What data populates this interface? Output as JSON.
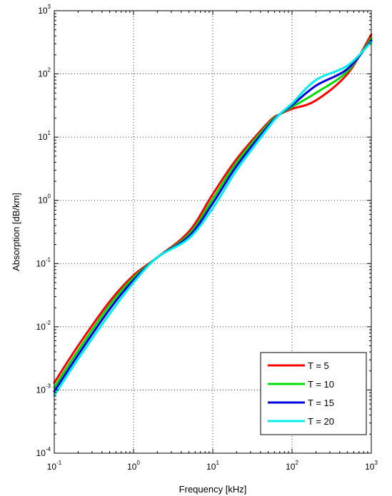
{
  "chart_data": {
    "type": "line",
    "title": "",
    "xlabel": "Frequency [kHz]",
    "ylabel": "Absorption [dB/km]",
    "xscale": "log",
    "yscale": "log",
    "xlim": [
      0.1,
      1000
    ],
    "ylim": [
      0.0001,
      1000
    ],
    "grid": true,
    "legend_position": "bottom-right",
    "x_ticks": [
      {
        "base": "10",
        "exp": "-1"
      },
      {
        "base": "10",
        "exp": "0"
      },
      {
        "base": "10",
        "exp": "1"
      },
      {
        "base": "10",
        "exp": "2"
      },
      {
        "base": "10",
        "exp": "3"
      }
    ],
    "y_ticks": [
      {
        "base": "10",
        "exp": "-4"
      },
      {
        "base": "10",
        "exp": "-3"
      },
      {
        "base": "10",
        "exp": "-2"
      },
      {
        "base": "10",
        "exp": "-1"
      },
      {
        "base": "10",
        "exp": "0"
      },
      {
        "base": "10",
        "exp": "1"
      },
      {
        "base": "10",
        "exp": "2"
      },
      {
        "base": "10",
        "exp": "3"
      }
    ],
    "x": [
      0.1,
      0.2,
      0.5,
      1,
      2,
      5,
      10,
      20,
      50,
      70,
      100,
      200,
      500,
      1000
    ],
    "series": [
      {
        "name": "T = 5",
        "color": "#ff0000",
        "values": [
          0.0013,
          0.005,
          0.025,
          0.065,
          0.125,
          0.32,
          1.25,
          4.5,
          17,
          23,
          28,
          38,
          100,
          420
        ]
      },
      {
        "name": "T = 10",
        "color": "#00dd00",
        "values": [
          0.0011,
          0.0042,
          0.022,
          0.06,
          0.125,
          0.29,
          1.05,
          4.0,
          16,
          23,
          30,
          50,
          110,
          370
        ]
      },
      {
        "name": "T = 15",
        "color": "#0000dd",
        "values": [
          0.00095,
          0.0036,
          0.019,
          0.055,
          0.125,
          0.27,
          0.9,
          3.5,
          15,
          23,
          32,
          65,
          120,
          340
        ]
      },
      {
        "name": "T = 20",
        "color": "#00eeee",
        "values": [
          0.00082,
          0.0031,
          0.016,
          0.05,
          0.125,
          0.25,
          0.75,
          3.0,
          14,
          23,
          34,
          80,
          135,
          320
        ]
      }
    ]
  }
}
